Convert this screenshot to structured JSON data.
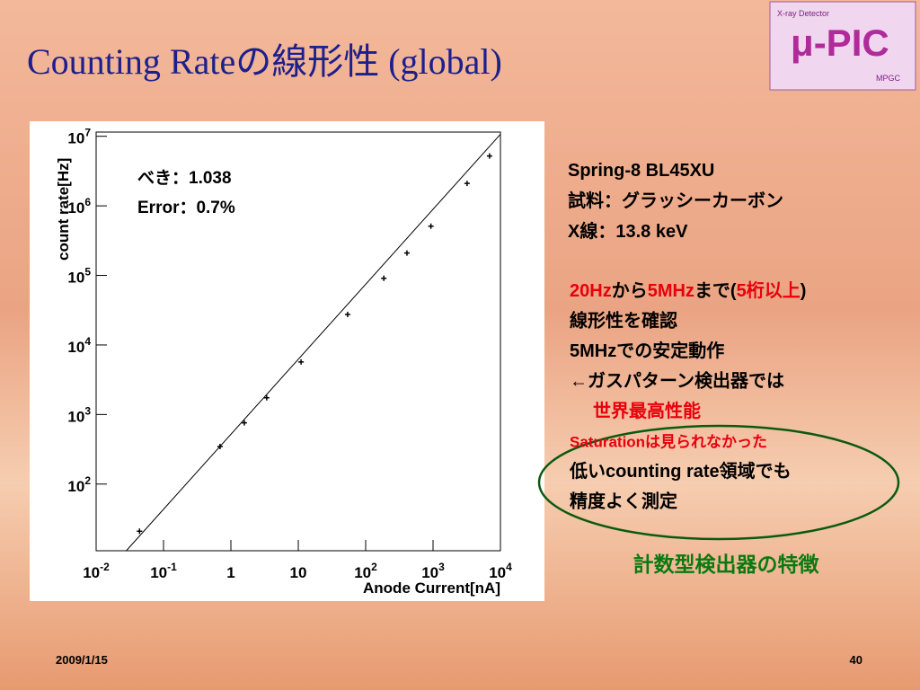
{
  "slide": {
    "title": "Counting Rateの線形性 (global)",
    "logo": {
      "top": "X-ray Detector",
      "main": "μ-PIC",
      "bottom": "MPGC"
    },
    "info": [
      "Spring-8 BL45XU",
      "試料：グラッシーカーボン",
      "X線：13.8 keV"
    ],
    "notes": [
      {
        "segments": [
          {
            "text": "20Hz",
            "color": "#e8000b"
          },
          {
            "text": "から",
            "color": "#000000"
          },
          {
            "text": "5MHz",
            "color": "#e8000b"
          },
          {
            "text": "まで(",
            "color": "#000000"
          },
          {
            "text": "5桁以上",
            "color": "#e8000b"
          },
          {
            "text": ")",
            "color": "#000000"
          }
        ]
      },
      {
        "segments": [
          {
            "text": "線形性を確認",
            "color": "#000000"
          }
        ]
      },
      {
        "segments": [
          {
            "text": "5MHzでの安定動作",
            "color": "#000000"
          }
        ]
      },
      {
        "segments": [
          {
            "text": "←ガスパターン検出器では",
            "color": "#000000"
          }
        ]
      },
      {
        "indent": true,
        "segments": [
          {
            "text": "世界最高性能",
            "color": "#e8000b"
          }
        ]
      },
      {
        "small": true,
        "segments": [
          {
            "text": "Saturationは見られなかった",
            "color": "#e8000b"
          }
        ]
      },
      {
        "segments": [
          {
            "text": "低いcounting rate領域でも",
            "color": "#000000"
          }
        ]
      },
      {
        "segments": [
          {
            "text": "精度よく測定",
            "color": "#000000"
          }
        ]
      }
    ],
    "feature": "計数型検出器の特徴",
    "date": "2009/1/15",
    "page": "40"
  },
  "chart_data": {
    "type": "scatter",
    "x_label": "Anode Current[nA]",
    "y_label": "count rate[Hz]",
    "annotations": [
      "べき：1.038",
      "Error：0.7%"
    ],
    "log_x": true,
    "log_y": true,
    "xlim": [
      0.01,
      10000
    ],
    "ylim": [
      11,
      11500000
    ],
    "xticks": [
      {
        "value": 0.01,
        "label": "10^-2"
      },
      {
        "value": 0.1,
        "label": "10^-1"
      },
      1,
      10,
      {
        "value": 100,
        "label": "10^2"
      },
      {
        "value": 1000,
        "label": "10^3"
      },
      {
        "value": 10000,
        "label": "10^4"
      }
    ],
    "yticks": [
      {
        "value": 100,
        "label": "10^2"
      },
      {
        "value": 1000,
        "label": "10^3"
      },
      {
        "value": 10000,
        "label": "10^4"
      },
      {
        "value": 100000,
        "label": "10^5"
      },
      {
        "value": 1000000,
        "label": "10^6"
      },
      {
        "value": 10000000,
        "label": "10^7"
      }
    ],
    "series": [
      {
        "color": "#000000",
        "x": [
          0.044,
          0.69,
          1.58,
          3.4,
          11,
          54,
          186,
          410,
          930,
          3200,
          6900
        ],
        "values": [
          21,
          347,
          760,
          1740,
          5700,
          27500,
          91000,
          210000,
          510000,
          2100000,
          5200000
        ]
      }
    ],
    "fit": {
      "color": "#000000",
      "x": [
        0.028,
        10000
      ],
      "y": [
        11,
        10700000
      ]
    }
  }
}
